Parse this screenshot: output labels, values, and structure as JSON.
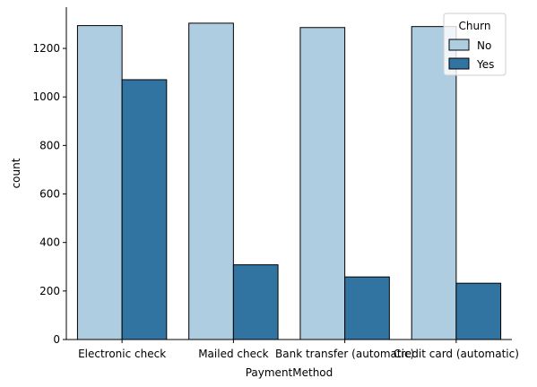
{
  "chart_data": {
    "type": "bar",
    "categories": [
      "Electronic check",
      "Mailed check",
      "Bank transfer (automatic)",
      "Credit card (automatic)"
    ],
    "series": [
      {
        "name": "No",
        "values": [
          1294,
          1304,
          1286,
          1290
        ],
        "color": "#afcde1"
      },
      {
        "name": "Yes",
        "values": [
          1071,
          308,
          258,
          232
        ],
        "color": "#3274a1"
      }
    ],
    "xlabel": "PaymentMethod",
    "ylabel": "count",
    "ylim": [
      0,
      1370
    ],
    "yticks": [
      0,
      200,
      400,
      600,
      800,
      1000,
      1200
    ],
    "legend": {
      "title": "Churn",
      "placement": "top-right"
    },
    "grid": false
  }
}
